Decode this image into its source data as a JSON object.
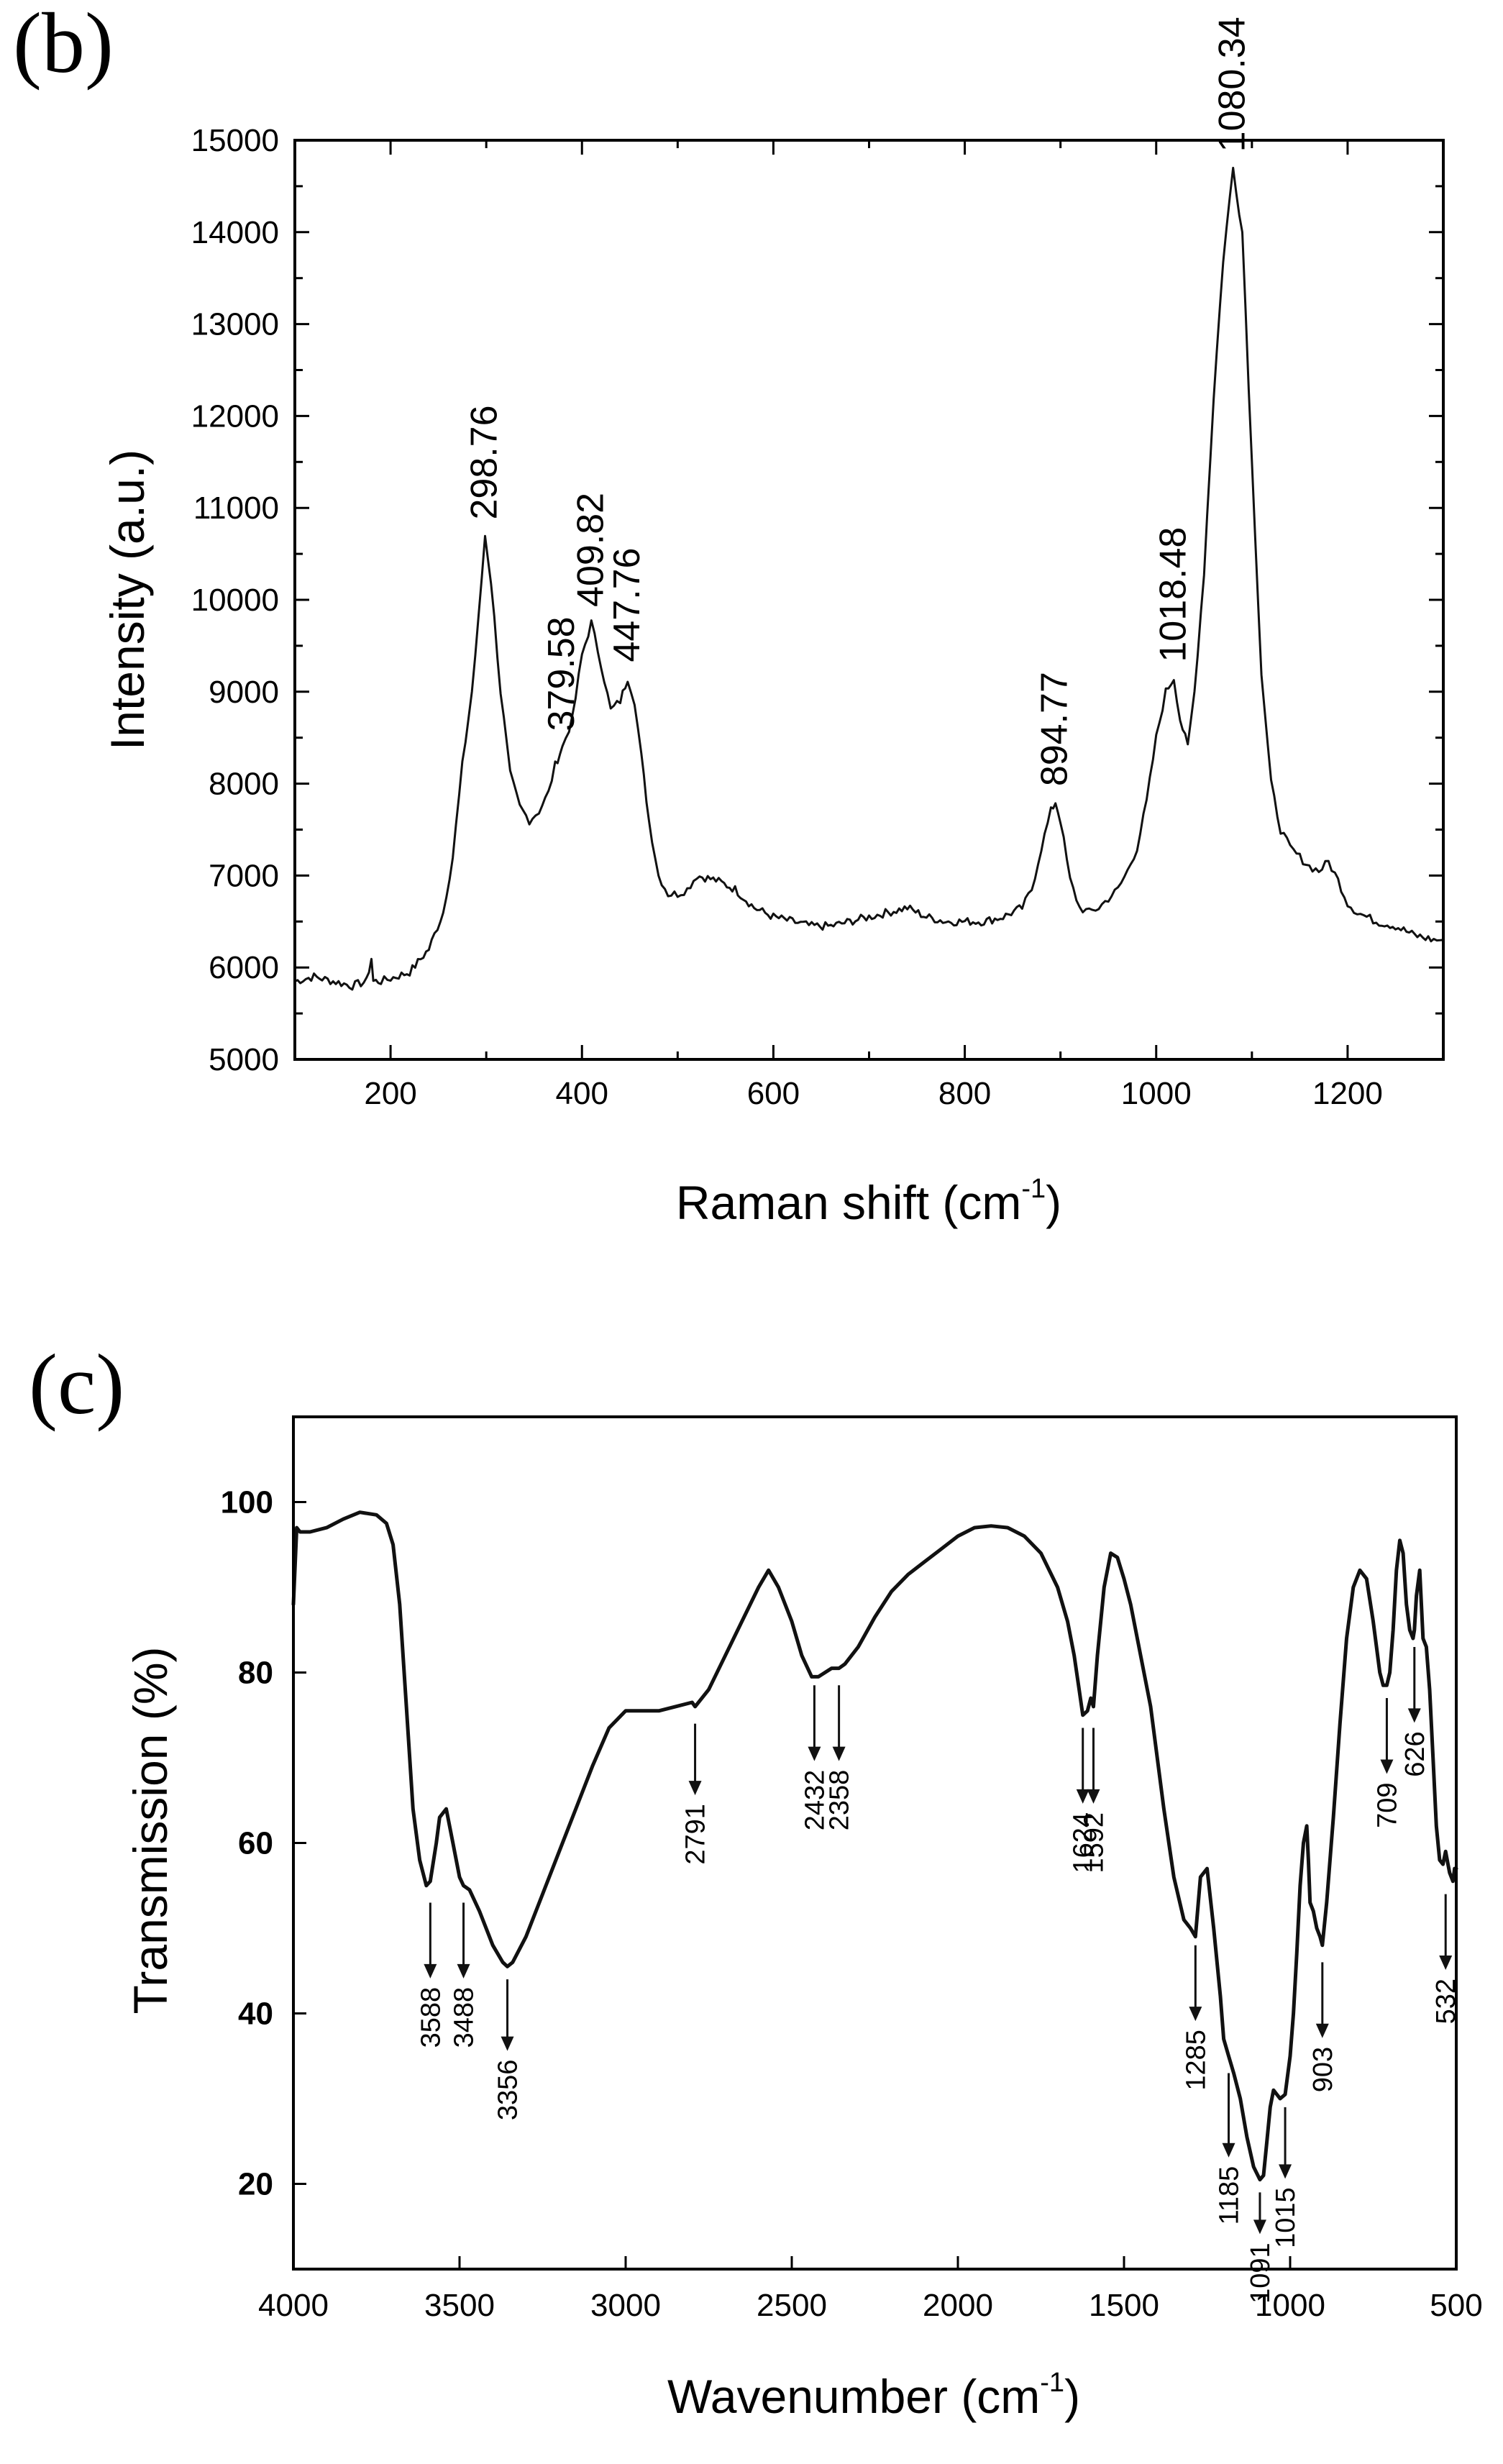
{
  "chart_data": [
    {
      "panel_label": "(b)",
      "type": "line",
      "xlabel": "Raman shift (cm",
      "xlabel_sup": "-1",
      "xlabel_end": ")",
      "ylabel": "Intensity (a.u.)",
      "xlim": [
        100,
        1300
      ],
      "ylim": [
        5000,
        15000
      ],
      "xticks": [
        200,
        400,
        600,
        800,
        1000,
        1200
      ],
      "yticks": [
        5000,
        6000,
        7000,
        8000,
        9000,
        10000,
        11000,
        12000,
        13000,
        14000,
        15000
      ],
      "grid": false,
      "series": [
        {
          "name": "Raman spectrum",
          "x": [
            100,
            120,
            140,
            160,
            175,
            180,
            182,
            190,
            200,
            220,
            240,
            255,
            265,
            275,
            285,
            292,
            298.76,
            305,
            315,
            325,
            335,
            345,
            355,
            365,
            372,
            379.58,
            390,
            400,
            409.82,
            420,
            430,
            440,
            447.76,
            455,
            462,
            470,
            480,
            490,
            500,
            510,
            520,
            540,
            560,
            580,
            600,
            620,
            640,
            660,
            680,
            700,
            720,
            740,
            760,
            780,
            800,
            820,
            840,
            860,
            870,
            880,
            890,
            894.77,
            900,
            910,
            920,
            930,
            940,
            950,
            960,
            970,
            980,
            990,
            1000,
            1010,
            1018.48,
            1025,
            1033,
            1040,
            1050,
            1060,
            1070,
            1080.34,
            1090,
            1100,
            1110,
            1120,
            1130,
            1140,
            1150,
            1160,
            1170,
            1180,
            1190,
            1200,
            1210,
            1220,
            1230,
            1250,
            1270,
            1290,
            1300
          ],
          "y": [
            5850,
            5900,
            5850,
            5800,
            5850,
            6100,
            5850,
            5850,
            5880,
            5950,
            6200,
            6600,
            7200,
            8200,
            9000,
            9800,
            10700,
            10200,
            9000,
            8100,
            7750,
            7600,
            7700,
            7900,
            8200,
            8400,
            8700,
            9400,
            9750,
            9300,
            8800,
            8900,
            9150,
            8900,
            8300,
            7600,
            7000,
            6800,
            6800,
            6850,
            7000,
            6950,
            6850,
            6650,
            6550,
            6500,
            6450,
            6450,
            6500,
            6550,
            6600,
            6650,
            6550,
            6500,
            6500,
            6500,
            6550,
            6650,
            6850,
            7300,
            7700,
            7800,
            7600,
            6950,
            6650,
            6600,
            6650,
            6750,
            6850,
            7050,
            7300,
            7800,
            8500,
            9000,
            9150,
            8700,
            8400,
            9000,
            10300,
            12200,
            13700,
            14700,
            14000,
            11500,
            9200,
            8000,
            7500,
            7300,
            7200,
            7100,
            7050,
            7150,
            6950,
            6700,
            6600,
            6550,
            6500,
            6450,
            6350,
            6300,
            6300
          ]
        }
      ],
      "annotations": [
        {
          "x": 298.76,
          "text": "298.76",
          "peak": 10700
        },
        {
          "x": 379.58,
          "text": "379.58",
          "peak": 8400
        },
        {
          "x": 409.82,
          "text": "409.82",
          "peak": 9750
        },
        {
          "x": 447.76,
          "text": "447.76",
          "peak": 9150
        },
        {
          "x": 894.77,
          "text": "894.77",
          "peak": 7800
        },
        {
          "x": 1018.48,
          "text": "1018.48",
          "peak": 9150
        },
        {
          "x": 1080.34,
          "text": "1080.34",
          "peak": 14700
        }
      ]
    },
    {
      "panel_label": "(c)",
      "type": "line",
      "xlabel": "Wavenumber (cm",
      "xlabel_sup": "-1",
      "xlabel_end": ")",
      "ylabel": "Transmission (%)",
      "xlim": [
        4000,
        500
      ],
      "ylim": [
        10,
        110
      ],
      "xticks": [
        4000,
        3500,
        3000,
        2500,
        2000,
        1500,
        1000,
        500
      ],
      "yticks": [
        20,
        40,
        60,
        80,
        100
      ],
      "grid": false,
      "series": [
        {
          "name": "FTIR spectrum",
          "x": [
            4000,
            3990,
            3980,
            3950,
            3900,
            3850,
            3800,
            3750,
            3720,
            3700,
            3680,
            3660,
            3640,
            3620,
            3600,
            3588,
            3570,
            3560,
            3540,
            3520,
            3500,
            3488,
            3470,
            3440,
            3400,
            3370,
            3356,
            3340,
            3300,
            3250,
            3200,
            3150,
            3100,
            3050,
            3000,
            2950,
            2900,
            2850,
            2800,
            2791,
            2750,
            2700,
            2650,
            2600,
            2570,
            2540,
            2500,
            2470,
            2440,
            2432,
            2420,
            2400,
            2380,
            2358,
            2340,
            2300,
            2250,
            2200,
            2150,
            2100,
            2050,
            2000,
            1950,
            1900,
            1850,
            1800,
            1750,
            1700,
            1670,
            1650,
            1635,
            1624,
            1610,
            1600,
            1592,
            1580,
            1560,
            1540,
            1520,
            1500,
            1480,
            1450,
            1420,
            1400,
            1380,
            1350,
            1320,
            1300,
            1285,
            1270,
            1250,
            1230,
            1210,
            1200,
            1185,
            1170,
            1150,
            1130,
            1110,
            1091,
            1080,
            1070,
            1060,
            1050,
            1040,
            1030,
            1015,
            1000,
            990,
            980,
            970,
            960,
            950,
            945,
            940,
            930,
            920,
            910,
            903,
            890,
            870,
            850,
            830,
            810,
            790,
            770,
            750,
            730,
            720,
            709,
            700,
            690,
            680,
            670,
            660,
            650,
            640,
            630,
            626,
            620,
            610,
            600,
            590,
            580,
            570,
            560,
            550,
            540,
            532,
            525,
            520,
            515,
            510,
            505,
            500
          ],
          "y": [
            88,
            97,
            96.5,
            96.5,
            97,
            98,
            98.8,
            98.5,
            97.5,
            95,
            88,
            76,
            64,
            58,
            55,
            55.5,
            60,
            63,
            64,
            60,
            56,
            55,
            54.5,
            52,
            48,
            46,
            45.5,
            46,
            49,
            54,
            59,
            64,
            69,
            73.5,
            75.5,
            75.5,
            75.5,
            76,
            76.5,
            76,
            78,
            82,
            86,
            90,
            92,
            90,
            86,
            82,
            79.5,
            79.5,
            79.5,
            80,
            80.5,
            80.5,
            81,
            83,
            86.5,
            89.5,
            91.5,
            93,
            94.5,
            96,
            97,
            97.2,
            97,
            96,
            94,
            90,
            86,
            82,
            78,
            75,
            75.5,
            77,
            76,
            82,
            90,
            94,
            93.5,
            91,
            88,
            82,
            76,
            70,
            64,
            56,
            51,
            50,
            49,
            56,
            57,
            50,
            42,
            37,
            35,
            33,
            30,
            25.5,
            22,
            20.5,
            21,
            25,
            29,
            31,
            30.5,
            30,
            30.5,
            35,
            40,
            47,
            55,
            60,
            62,
            58,
            53,
            52,
            50,
            49,
            48,
            53,
            63,
            74,
            84,
            90,
            92,
            91,
            86,
            80,
            78.5,
            78.5,
            80,
            85,
            92,
            95.5,
            94,
            88,
            85,
            84,
            85,
            89,
            92,
            84,
            83,
            78,
            70,
            62,
            58,
            57.5,
            59,
            57.5,
            56.5,
            56,
            55.5,
            57,
            57
          ]
        }
      ],
      "annotations": [
        {
          "x": 3588,
          "text": "3588",
          "y_start": 53,
          "y_end": 49
        },
        {
          "x": 3488,
          "text": "3488",
          "y_start": 53,
          "y_end": 49
        },
        {
          "x": 3356,
          "text": "3356",
          "y_start": 44,
          "y_end": 40.5
        },
        {
          "x": 2791,
          "text": "2791",
          "y_start": 74,
          "y_end": 70.5
        },
        {
          "x": 2432,
          "text": "2432",
          "y_start": 78.5,
          "y_end": 74.5
        },
        {
          "x": 2358,
          "text": "2358",
          "y_start": 78.5,
          "y_end": 74.5
        },
        {
          "x": 1624,
          "text": "1624",
          "y_start": 73.5,
          "y_end": 69.5
        },
        {
          "x": 1592,
          "text": "1592",
          "y_start": 73.5,
          "y_end": 69.5
        },
        {
          "x": 1285,
          "text": "1285",
          "y_start": 48,
          "y_end": 44
        },
        {
          "x": 1185,
          "text": "1185",
          "y_start": 33,
          "y_end": 28
        },
        {
          "x": 1091,
          "text": "1091",
          "y_start": 19,
          "y_end": 19
        },
        {
          "x": 1015,
          "text": "1015",
          "y_start": 29,
          "y_end": 25.5
        },
        {
          "x": 903,
          "text": "903",
          "y_start": 46,
          "y_end": 42
        },
        {
          "x": 709,
          "text": "709",
          "y_start": 77,
          "y_end": 73
        },
        {
          "x": 626,
          "text": "626",
          "y_start": 83,
          "y_end": 79
        },
        {
          "x": 532,
          "text": "532",
          "y_start": 54,
          "y_end": 50
        }
      ]
    }
  ]
}
